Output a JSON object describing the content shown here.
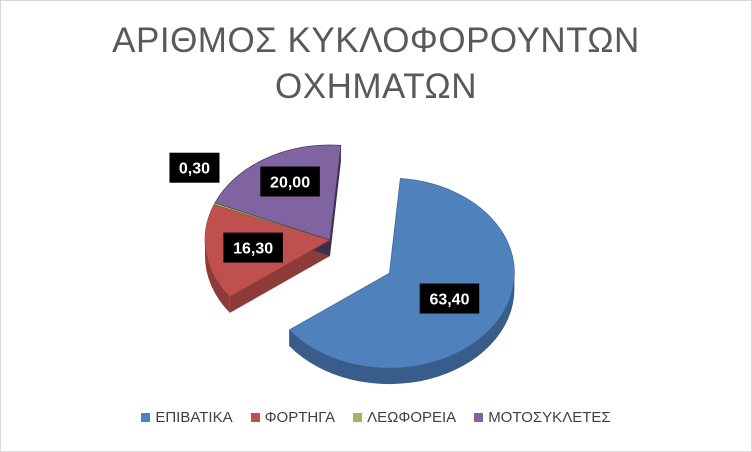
{
  "chart_data": {
    "type": "pie",
    "title_lines": [
      "ΑΡΙΘΜΟΣ ΚΥΚΛΟΦΟΡΟΥΝΤΩΝ",
      "ΟΧΗΜΑΤΩΝ"
    ],
    "slices": [
      {
        "name": "ΕΠΙΒΑΤΙΚΑ",
        "value": 63.4,
        "label": "63,40",
        "color": "#4f81bd",
        "side": "#385d8a",
        "exploded": true
      },
      {
        "name": "ΦΟΡΤΗΓΑ",
        "value": 16.3,
        "label": "16,30",
        "color": "#c0504d",
        "side": "#8e3a38",
        "exploded": false
      },
      {
        "name": "ΛΕΩΦΟΡΕΙΑ",
        "value": 0.3,
        "label": "0,30",
        "color": "#9bbb59",
        "side": "#5e7a2c",
        "exploded": false
      },
      {
        "name": "ΜΟΤΟΣΥΚΛΕΤΕΣ",
        "value": 20.0,
        "label": "20,00",
        "color": "#8064a2",
        "side": "#3d2f52",
        "exploded": false
      }
    ],
    "legend_position": "bottom",
    "style": "3d-exploded-pie",
    "data_label_style": "white text on black box"
  }
}
